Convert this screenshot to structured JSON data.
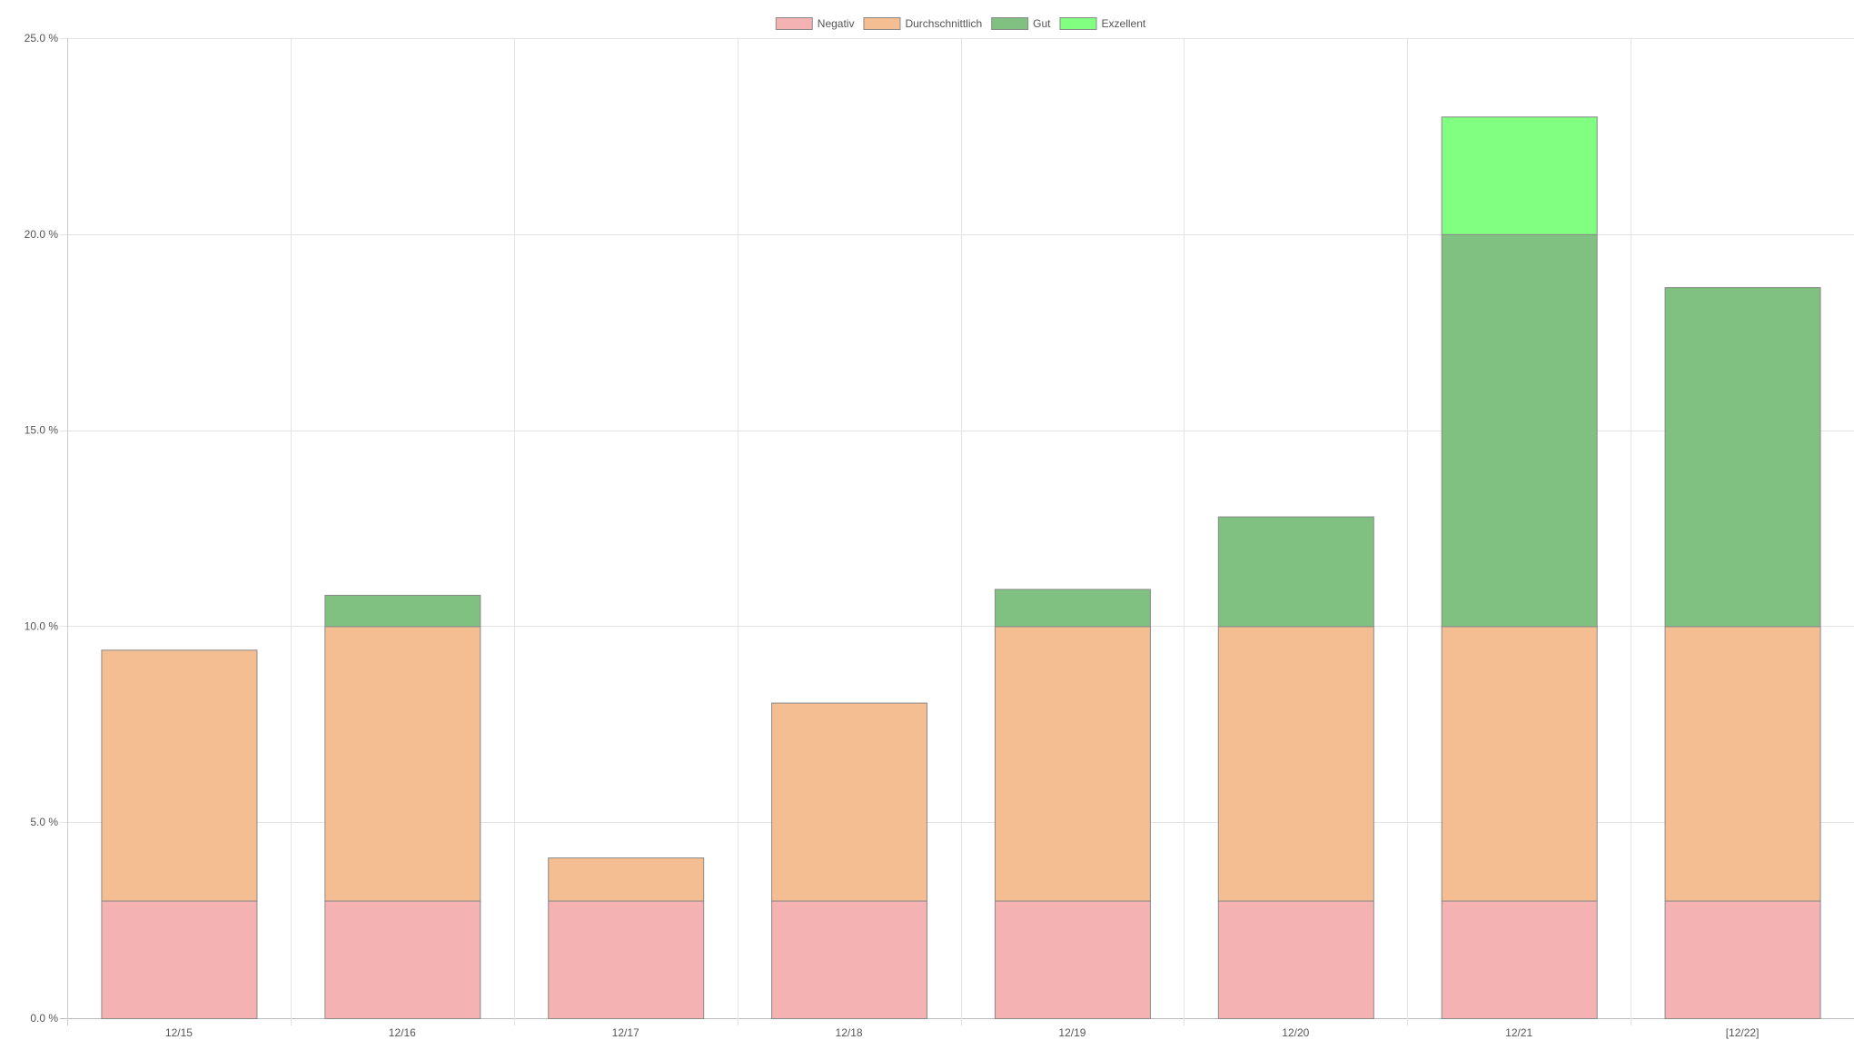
{
  "chart_data": {
    "type": "bar",
    "stacked": true,
    "title": "",
    "xlabel": "",
    "ylabel": "",
    "ylim": [
      0,
      25
    ],
    "y_ticks": [
      "0.0 %",
      "5.0 %",
      "10.0 %",
      "15.0 %",
      "20.0 %",
      "25.0 %"
    ],
    "y_tick_values": [
      0,
      5,
      10,
      15,
      20,
      25
    ],
    "grid": true,
    "legend_position": "top-center",
    "categories": [
      "12/15",
      "12/16",
      "12/17",
      "12/18",
      "12/19",
      "12/20",
      "12/21",
      "[12/22]"
    ],
    "series": [
      {
        "name": "Negativ",
        "color": "#f4b3b2",
        "values": [
          3,
          3,
          3,
          3,
          3,
          3,
          3,
          3
        ]
      },
      {
        "name": "Durchschnittlich",
        "color": "#f4be92",
        "values": [
          6.4,
          7,
          1.1,
          5.05,
          7,
          7,
          7,
          7
        ]
      },
      {
        "name": "Gut",
        "color": "#80c080",
        "values": [
          0,
          0.8,
          0,
          0,
          0.95,
          2.8,
          10,
          8.65
        ]
      },
      {
        "name": "Exzellent",
        "color": "#80ff80",
        "values": [
          0,
          0,
          0,
          0,
          0,
          0,
          3,
          0
        ]
      }
    ]
  }
}
